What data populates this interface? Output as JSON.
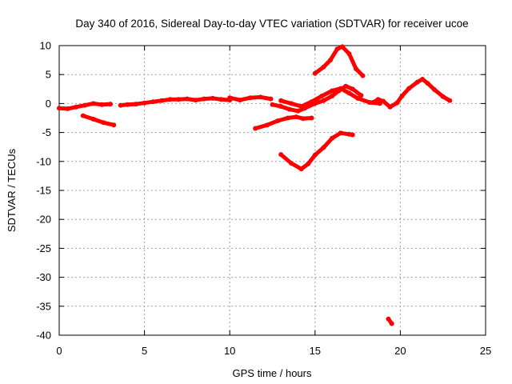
{
  "chart_data": {
    "type": "scatter",
    "title": "Day 340 of 2016, Sidereal Day-to-day VTEC variation (SDTVAR) for receiver ucoe",
    "xlabel": "GPS time / hours",
    "ylabel": "SDTVAR / TECUs",
    "xlim": [
      0,
      25
    ],
    "ylim": [
      -40,
      10
    ],
    "xticks": [
      0,
      5,
      10,
      15,
      20,
      25
    ],
    "yticks": [
      10,
      5,
      0,
      -5,
      -10,
      -15,
      -20,
      -25,
      -30,
      -35,
      -40
    ],
    "grid": true,
    "legend": "none",
    "series": [
      {
        "name": "track-01",
        "points": [
          [
            0.0,
            -0.8
          ],
          [
            0.5,
            -0.9
          ],
          [
            1.0,
            -0.6
          ],
          [
            1.5,
            -0.3
          ],
          [
            2.0,
            0.0
          ],
          [
            2.5,
            -0.2
          ],
          [
            3.0,
            -0.1
          ]
        ]
      },
      {
        "name": "track-02",
        "points": [
          [
            1.4,
            -2.1
          ],
          [
            2.0,
            -2.7
          ],
          [
            2.6,
            -3.3
          ],
          [
            3.2,
            -3.7
          ]
        ]
      },
      {
        "name": "track-03",
        "points": [
          [
            3.6,
            -0.3
          ],
          [
            4.0,
            -0.2
          ],
          [
            4.5,
            -0.1
          ],
          [
            5.0,
            0.1
          ],
          [
            5.5,
            0.3
          ],
          [
            6.0,
            0.5
          ],
          [
            6.5,
            0.7
          ],
          [
            7.0,
            0.7
          ],
          [
            7.5,
            0.8
          ],
          [
            8.0,
            0.6
          ],
          [
            8.5,
            0.8
          ],
          [
            9.0,
            0.9
          ],
          [
            9.5,
            0.7
          ],
          [
            10.0,
            0.6
          ]
        ]
      },
      {
        "name": "track-04",
        "points": [
          [
            10.0,
            1.0
          ],
          [
            10.6,
            0.6
          ],
          [
            11.2,
            1.0
          ],
          [
            11.8,
            1.1
          ],
          [
            12.4,
            0.8
          ]
        ]
      },
      {
        "name": "track-05",
        "points": [
          [
            11.5,
            -4.3
          ],
          [
            12.2,
            -3.7
          ],
          [
            12.8,
            -3.0
          ],
          [
            13.4,
            -2.5
          ],
          [
            13.9,
            -2.3
          ],
          [
            14.3,
            -2.6
          ],
          [
            14.8,
            -2.5
          ]
        ]
      },
      {
        "name": "track-06",
        "points": [
          [
            12.5,
            -0.2
          ],
          [
            13.0,
            -0.5
          ],
          [
            13.5,
            -1.0
          ],
          [
            14.0,
            -1.3
          ],
          [
            14.4,
            -0.8
          ],
          [
            15.0,
            0.0
          ],
          [
            15.5,
            0.5
          ],
          [
            16.0,
            1.3
          ],
          [
            16.4,
            2.2
          ],
          [
            16.8,
            3.0
          ],
          [
            17.2,
            2.5
          ],
          [
            17.7,
            1.4
          ]
        ]
      },
      {
        "name": "track-07",
        "points": [
          [
            13.0,
            0.5
          ],
          [
            13.6,
            0.0
          ],
          [
            14.2,
            -0.5
          ],
          [
            14.8,
            0.3
          ],
          [
            15.4,
            1.3
          ],
          [
            16.0,
            2.2
          ],
          [
            16.5,
            2.6
          ],
          [
            17.0,
            1.8
          ],
          [
            17.5,
            0.9
          ],
          [
            18.2,
            0.2
          ],
          [
            18.8,
            0.0
          ]
        ]
      },
      {
        "name": "track-08",
        "points": [
          [
            13.0,
            -8.8
          ],
          [
            13.6,
            -10.3
          ],
          [
            14.2,
            -11.3
          ],
          [
            14.6,
            -10.4
          ],
          [
            15.0,
            -8.9
          ],
          [
            15.5,
            -7.6
          ],
          [
            16.0,
            -6.0
          ],
          [
            16.5,
            -5.1
          ],
          [
            17.0,
            -5.3
          ],
          [
            17.2,
            -5.4
          ]
        ]
      },
      {
        "name": "track-09",
        "points": [
          [
            15.0,
            5.2
          ],
          [
            15.5,
            6.3
          ],
          [
            15.9,
            7.5
          ],
          [
            16.3,
            9.4
          ],
          [
            16.6,
            9.8
          ],
          [
            17.0,
            8.6
          ],
          [
            17.4,
            6.0
          ],
          [
            17.8,
            4.8
          ]
        ]
      },
      {
        "name": "track-10",
        "points": [
          [
            18.4,
            0.2
          ],
          [
            18.7,
            0.7
          ],
          [
            19.0,
            0.4
          ],
          [
            19.4,
            -0.6
          ],
          [
            19.8,
            0.1
          ],
          [
            20.1,
            1.3
          ],
          [
            20.5,
            2.6
          ],
          [
            21.0,
            3.7
          ],
          [
            21.3,
            4.2
          ],
          [
            21.6,
            3.5
          ],
          [
            22.0,
            2.4
          ],
          [
            22.5,
            1.2
          ],
          [
            22.9,
            0.5
          ]
        ]
      },
      {
        "name": "track-11",
        "points": [
          [
            19.3,
            -37.2
          ],
          [
            19.5,
            -38.0
          ]
        ]
      }
    ]
  }
}
